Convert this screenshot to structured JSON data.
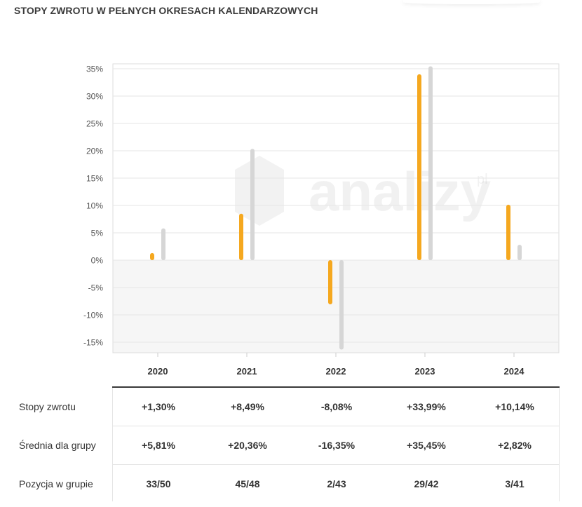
{
  "title": "STOPY ZWROTU W PEŁNYCH OKRESACH KALENDARZOWYCH",
  "watermark": "analizy",
  "watermark_suffix": "pl",
  "colors": {
    "fund": "#f5a81f",
    "group": "#d6d6d6",
    "negative_band": "#f6f6f6",
    "grid": "#e6e6e6"
  },
  "chart_data": {
    "type": "bar",
    "categories": [
      "2020",
      "2021",
      "2022",
      "2023",
      "2024"
    ],
    "series": [
      {
        "name": "Stopy zwrotu",
        "values": [
          1.3,
          8.49,
          -8.08,
          33.99,
          10.14
        ]
      },
      {
        "name": "Średnia dla grupy",
        "values": [
          5.81,
          20.36,
          -16.35,
          35.45,
          2.82
        ]
      }
    ],
    "ylim": [
      -17,
      36
    ],
    "yticks": [
      35,
      30,
      25,
      20,
      15,
      10,
      5,
      0,
      -5,
      -10,
      -15
    ],
    "ytick_labels": [
      "35%",
      "30%",
      "25%",
      "20%",
      "15%",
      "10%",
      "5%",
      "0%",
      "-5%",
      "-10%",
      "-15%"
    ],
    "grid": true,
    "legend": "none"
  },
  "table": {
    "rows": [
      {
        "label": "Stopy zwrotu",
        "cells": [
          "+1,30%",
          "+8,49%",
          "-8,08%",
          "+33,99%",
          "+10,14%"
        ]
      },
      {
        "label": "Średnia dla grupy",
        "cells": [
          "+5,81%",
          "+20,36%",
          "-16,35%",
          "+35,45%",
          "+2,82%"
        ]
      },
      {
        "label": "Pozycja w grupie",
        "cells": [
          "33/50",
          "45/48",
          "2/43",
          "29/42",
          "3/41"
        ]
      }
    ]
  }
}
